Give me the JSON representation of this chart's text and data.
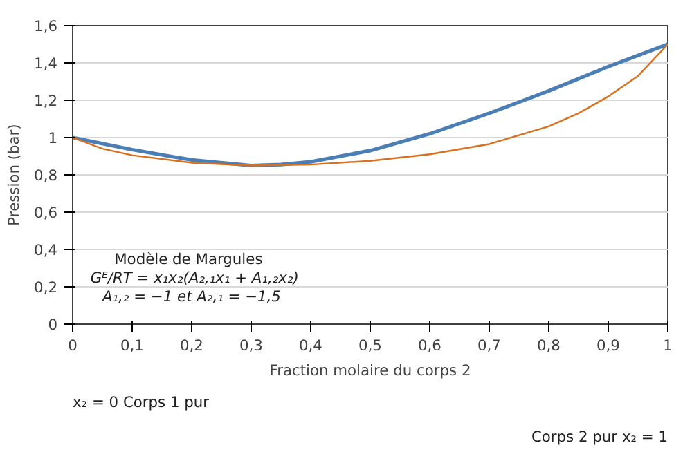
{
  "chart_data": {
    "type": "line",
    "xlabel": "Fraction molaire du corps 2",
    "ylabel": "Pression (bar)",
    "xlim": [
      0,
      1
    ],
    "ylim": [
      0,
      1.6
    ],
    "xticks": [
      0,
      {
        "value": 0.1,
        "label": "0,1"
      },
      {
        "value": 0.2,
        "label": "0,2"
      },
      {
        "value": 0.3,
        "label": "0,3"
      },
      {
        "value": 0.4,
        "label": "0,4"
      },
      {
        "value": 0.5,
        "label": "0,5"
      },
      {
        "value": 0.6,
        "label": "0,6"
      },
      {
        "value": 0.7,
        "label": "0,7"
      },
      {
        "value": 0.8,
        "label": "0,8"
      },
      {
        "value": 0.9,
        "label": "0,9"
      },
      1
    ],
    "yticks": [
      0,
      {
        "value": 0.2,
        "label": "0,2"
      },
      {
        "value": 0.4,
        "label": "0,4"
      },
      {
        "value": 0.6,
        "label": "0,6"
      },
      {
        "value": 0.8,
        "label": "0,8"
      },
      1,
      {
        "value": 1.2,
        "label": "1,2"
      },
      {
        "value": 1.4,
        "label": "1,4"
      },
      {
        "value": 1.6,
        "label": "1,6"
      }
    ],
    "grid": "y",
    "marker": "none",
    "line_style": "solid",
    "series": [
      {
        "color": "#4a7eb5",
        "x": [
          0,
          0.1,
          0.2,
          0.3,
          0.35,
          0.4,
          0.5,
          0.6,
          0.7,
          0.8,
          0.9,
          1
        ],
        "values": [
          1.0,
          0.935,
          0.88,
          0.85,
          0.855,
          0.87,
          0.93,
          1.02,
          1.13,
          1.25,
          1.38,
          1.5
        ]
      },
      {
        "color": "#d8701f",
        "x": [
          0,
          0.05,
          0.1,
          0.2,
          0.3,
          0.4,
          0.5,
          0.6,
          0.7,
          0.8,
          0.85,
          0.9,
          0.95,
          1
        ],
        "values": [
          1.0,
          0.94,
          0.905,
          0.865,
          0.85,
          0.855,
          0.875,
          0.91,
          0.965,
          1.06,
          1.13,
          1.22,
          1.33,
          1.5
        ]
      }
    ],
    "annotations": [
      "Modèle de Margules",
      "Gᴱ/RT = x₁x₂(A₂,₁x₁ + A₁,₂x₂)",
      "A₁,₂ = −1 et A₂,₁ = −1,5",
      "x₂ = 0 Corps 1 pur",
      "Corps 2 pur x₂ = 1"
    ]
  }
}
